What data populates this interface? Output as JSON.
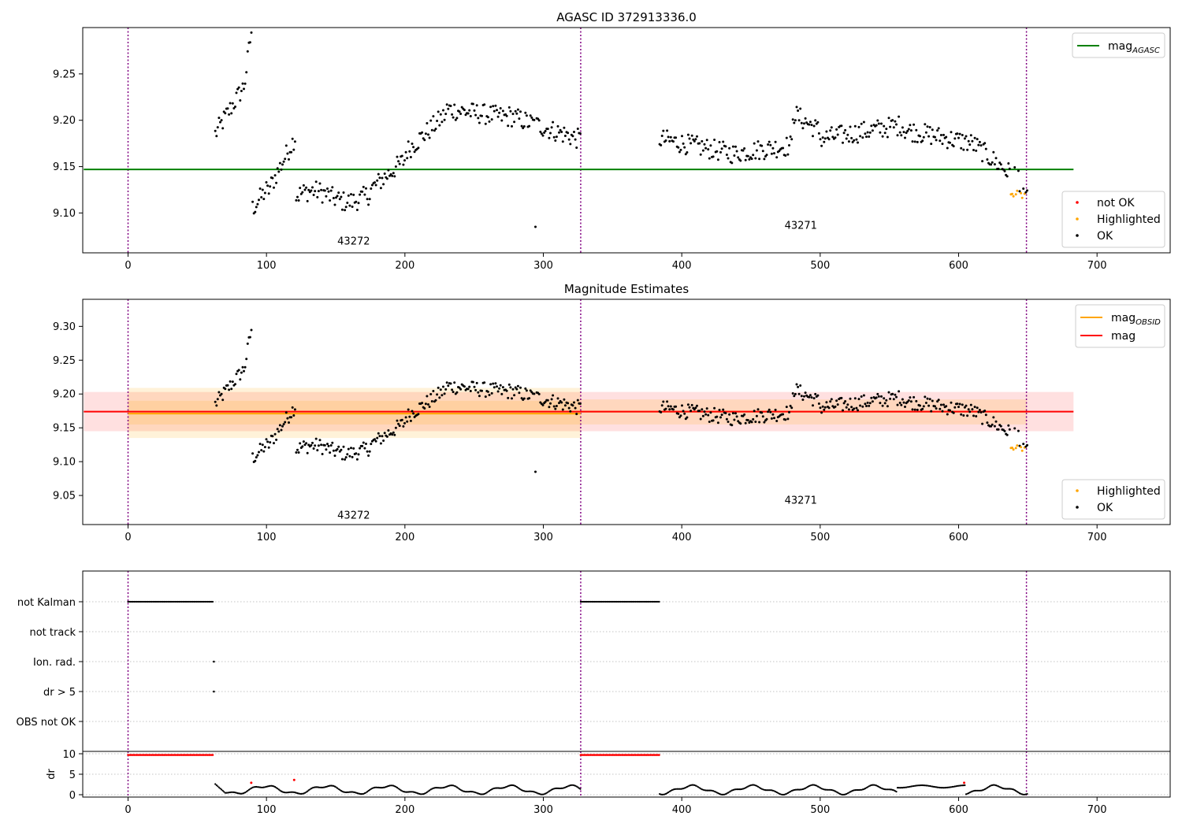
{
  "colors": {
    "ok": "#000000",
    "highlighted": "#ffa500",
    "not_ok": "#ff0000",
    "agasc": "#008000",
    "mag_obsid": "#ffa500",
    "mag": "#ff0000",
    "obs_boundary": "#800080"
  },
  "chart_data": [
    {
      "id": "agasc",
      "type": "scatter",
      "title": "AGASC ID 372913336.0",
      "xlim": [
        -32,
        752
      ],
      "ylim": [
        9.057,
        9.3
      ],
      "xticks": [
        0,
        100,
        200,
        300,
        400,
        500,
        600,
        700
      ],
      "yticks": [
        9.1,
        9.15,
        9.2,
        9.25
      ],
      "ytick_labels": [
        "9.10",
        "9.15",
        "9.20",
        "9.25"
      ],
      "vlines": [
        0,
        327,
        649
      ],
      "hlines": [
        {
          "y": 9.147,
          "x": [
            -32,
            683
          ],
          "series": "mag_agasc"
        }
      ],
      "annotations": [
        {
          "text": "43272",
          "x": 163,
          "y": 9.066
        },
        {
          "text": "43271",
          "x": 486,
          "y": 9.083
        }
      ],
      "legend_lines": [
        {
          "label": "mag",
          "sub": "AGASC",
          "color_key": "agasc"
        }
      ],
      "legend_points": [
        {
          "label": "not OK",
          "color_key": "not_ok"
        },
        {
          "label": "Highlighted",
          "color_key": "highlighted"
        },
        {
          "label": "OK",
          "color_key": "ok"
        }
      ],
      "grid": false
    },
    {
      "id": "estimates",
      "type": "scatter",
      "title": "Magnitude Estimates",
      "xlim": [
        -32,
        752
      ],
      "ylim": [
        9.007,
        9.34
      ],
      "xticks": [
        0,
        100,
        200,
        300,
        400,
        500,
        600,
        700
      ],
      "yticks": [
        9.05,
        9.1,
        9.15,
        9.2,
        9.25,
        9.3
      ],
      "ytick_labels": [
        "9.05",
        "9.10",
        "9.15",
        "9.20",
        "9.25",
        "9.30"
      ],
      "vlines": [
        0,
        327,
        649
      ],
      "bands": [
        {
          "x": [
            -32,
            683
          ],
          "y": [
            9.145,
            9.203
          ],
          "color_key": "mag",
          "opacity": 0.12
        },
        {
          "x": [
            0,
            327
          ],
          "y": [
            9.135,
            9.209
          ],
          "color_key": "mag_obsid",
          "opacity": 0.15
        },
        {
          "x": [
            0,
            327
          ],
          "y": [
            9.155,
            9.19
          ],
          "color_key": "mag_obsid",
          "opacity": 0.15
        },
        {
          "x": [
            327,
            649
          ],
          "y": [
            9.155,
            9.192
          ],
          "color_key": "mag_obsid",
          "opacity": 0.15
        }
      ],
      "hlines": [
        {
          "y": 9.171,
          "x": [
            0,
            327
          ],
          "series": "mag_obsid"
        },
        {
          "y": 9.174,
          "x": [
            327,
            649
          ],
          "series": "mag_obsid"
        },
        {
          "y": 9.174,
          "x": [
            -32,
            683
          ],
          "series": "mag"
        }
      ],
      "annotations": [
        {
          "text": "43272",
          "x": 163,
          "y": 9.016
        },
        {
          "text": "43271",
          "x": 486,
          "y": 9.038
        }
      ],
      "legend_lines": [
        {
          "label": "mag",
          "sub": "OBSID",
          "color_key": "mag_obsid"
        },
        {
          "label": "mag",
          "sub": "",
          "color_key": "mag"
        }
      ],
      "legend_points": [
        {
          "label": "Highlighted",
          "color_key": "highlighted"
        },
        {
          "label": "OK",
          "color_key": "ok"
        }
      ],
      "grid": false
    },
    {
      "id": "flags",
      "type": "scatter",
      "xlim": [
        -32,
        752
      ],
      "categories": [
        "not Kalman",
        "not track",
        "Ion. rad.",
        "dr > 5",
        "OBS not OK"
      ],
      "vlines": [
        0,
        327,
        649
      ],
      "flag_points": [
        {
          "category": "not Kalman",
          "ranges": [
            [
              0,
              62
            ],
            [
              327,
              384
            ]
          ]
        },
        {
          "category": "Ion. rad.",
          "points": [
            62
          ]
        },
        {
          "category": "dr > 5",
          "points": [
            62
          ]
        }
      ],
      "grid": true
    },
    {
      "id": "dr",
      "type": "scatter",
      "xlim": [
        -32,
        752
      ],
      "ylim": [
        -0.5,
        10.5
      ],
      "ylabel": "dr",
      "xticks": [
        0,
        100,
        200,
        300,
        400,
        500,
        600,
        700
      ],
      "yticks": [
        0,
        5,
        10
      ],
      "ytick_labels": [
        "0",
        "5",
        "10"
      ],
      "vlines": [
        0,
        327,
        649
      ],
      "hline_threshold": 10,
      "high_ranges": [
        [
          0,
          62
        ],
        [
          327,
          384
        ]
      ],
      "red_points": [
        {
          "x": 89,
          "y": 2.9
        },
        {
          "x": 120,
          "y": 3.6
        },
        {
          "x": 604,
          "y": 2.9
        }
      ],
      "grid": true
    }
  ]
}
